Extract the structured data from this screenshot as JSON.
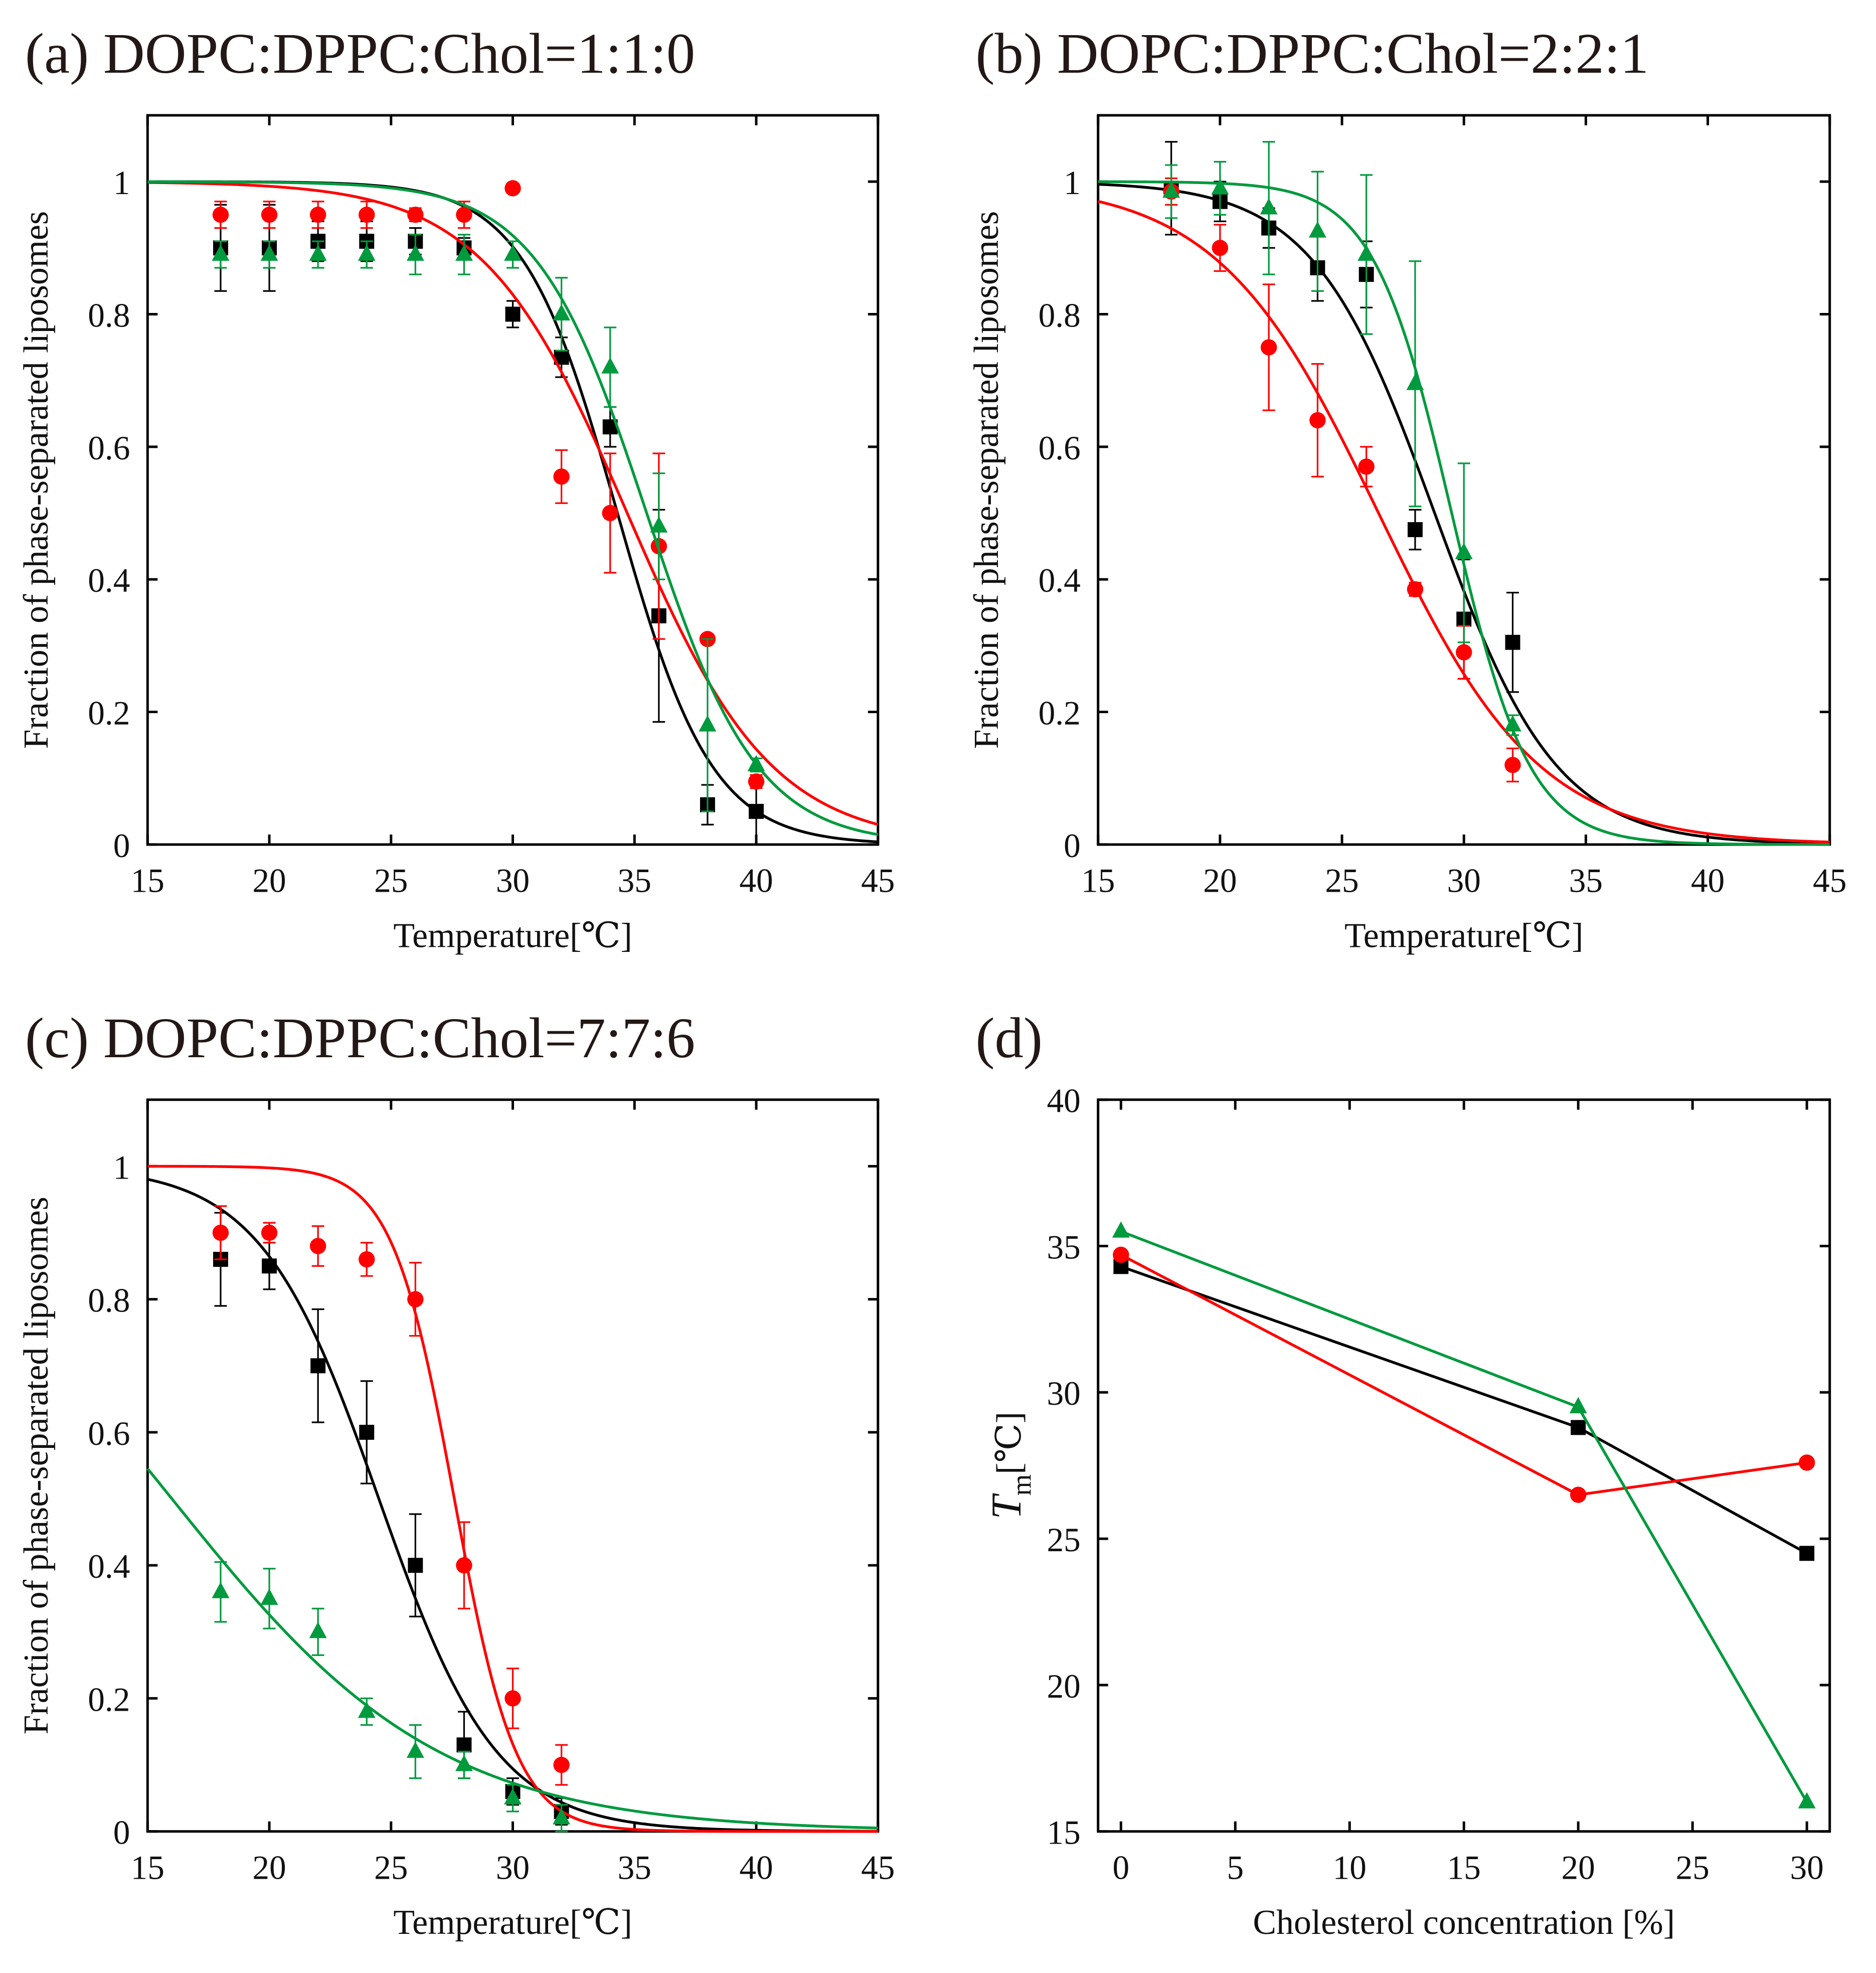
{
  "colors": {
    "black": "#000000",
    "red": "#ff0000",
    "green": "#009a3e"
  },
  "chart_data": [
    {
      "type": "scatter",
      "title": "(a)  DOPC:DPPC:Chol=1:1:0",
      "xlabel": "Temperature[℃]",
      "ylabel": "Fraction of phase-separated liposomes",
      "xlim": [
        15,
        45
      ],
      "ylim": [
        0,
        1.1
      ],
      "xticks": [
        "15",
        "20",
        "25",
        "30",
        "35",
        "40",
        "45"
      ],
      "yticks": [
        "0",
        "0.2",
        "0.4",
        "0.6",
        "0.8",
        "1"
      ],
      "series": [
        {
          "color": "black",
          "marker": "square",
          "fit": {
            "Tm": 34.3,
            "w": 1.94
          },
          "x": [
            18,
            20,
            22,
            24,
            26,
            28,
            30,
            32,
            34,
            36,
            38,
            40
          ],
          "y": [
            0.9,
            0.9,
            0.91,
            0.91,
            0.91,
            0.9,
            0.8,
            0.735,
            0.63,
            0.345,
            0.06,
            0.05
          ],
          "err": [
            0.065,
            0.065,
            0.03,
            0.03,
            0.02,
            0.015,
            0.02,
            0.03,
            0.03,
            0.16,
            0.03,
            0.05
          ]
        },
        {
          "color": "red",
          "marker": "circle",
          "fit": {
            "Tm": 34.7,
            "w": 2.97
          },
          "x": [
            18,
            20,
            22,
            24,
            26,
            28,
            30,
            32,
            34,
            36,
            38,
            40
          ],
          "y": [
            0.95,
            0.95,
            0.95,
            0.95,
            0.95,
            0.95,
            0.99,
            0.555,
            0.5,
            0.45,
            0.31,
            0.095
          ],
          "err": [
            0.02,
            0.02,
            0.02,
            0.02,
            0.01,
            0.02,
            0,
            0.04,
            0.09,
            0.14,
            0,
            0.01
          ]
        },
        {
          "color": "green",
          "marker": "triangle",
          "fit": {
            "Tm": 35.5,
            "w": 2.27
          },
          "x": [
            18,
            20,
            22,
            24,
            26,
            28,
            30,
            32,
            34,
            36,
            38,
            40
          ],
          "y": [
            0.89,
            0.89,
            0.89,
            0.89,
            0.89,
            0.89,
            0.89,
            0.8,
            0.72,
            0.48,
            0.18,
            0.12
          ],
          "err": [
            0.02,
            0.02,
            0.02,
            0.02,
            0.03,
            0.03,
            0.02,
            0.055,
            0.06,
            0.08,
            0.13,
            0.01
          ]
        }
      ]
    },
    {
      "type": "scatter",
      "title": "(b)  DOPC:DPPC:Chol=2:2:1",
      "xlabel": "Temperature[℃]",
      "ylabel": "Fraction of phase-separated liposomes",
      "xlim": [
        15,
        45
      ],
      "ylim": [
        0,
        1.1
      ],
      "xticks": [
        "15",
        "20",
        "25",
        "30",
        "35",
        "40",
        "45"
      ],
      "yticks": [
        "0",
        "0.2",
        "0.4",
        "0.6",
        "0.8",
        "1"
      ],
      "series": [
        {
          "color": "black",
          "marker": "square",
          "fit": {
            "Tm": 28.8,
            "w": 2.5
          },
          "x": [
            18,
            20,
            22,
            24,
            26,
            28,
            30,
            32
          ],
          "y": [
            0.99,
            0.97,
            0.93,
            0.87,
            0.86,
            0.475,
            0.34,
            0.305
          ],
          "err": [
            0.07,
            0.03,
            0.03,
            0.05,
            0.05,
            0.03,
            0.09,
            0.075
          ]
        },
        {
          "color": "red",
          "marker": "circle",
          "fit": {
            "Tm": 26.5,
            "w": 3.3
          },
          "x": [
            18,
            20,
            22,
            24,
            26,
            28,
            30,
            32
          ],
          "y": [
            0.985,
            0.9,
            0.75,
            0.64,
            0.57,
            0.385,
            0.29,
            0.12
          ],
          "err": [
            0.02,
            0.035,
            0.095,
            0.085,
            0.03,
            0.01,
            0.04,
            0.025
          ]
        },
        {
          "color": "green",
          "marker": "triangle",
          "fit": {
            "Tm": 29.5,
            "w": 1.6
          },
          "x": [
            18,
            20,
            22,
            24,
            26,
            28,
            30,
            32
          ],
          "y": [
            0.985,
            0.99,
            0.96,
            0.925,
            0.89,
            0.695,
            0.44,
            0.18
          ],
          "err": [
            0.04,
            0.04,
            0.1,
            0.09,
            0.12,
            0.185,
            0.135,
            0.015
          ]
        }
      ]
    },
    {
      "type": "scatter",
      "title": "(c)  DOPC:DPPC:Chol=7:7:6",
      "xlabel": "Temperature[℃]",
      "ylabel": "Fraction of phase-separated liposomes",
      "xlim": [
        15,
        45
      ],
      "ylim": [
        0,
        1.1
      ],
      "xticks": [
        "15",
        "20",
        "25",
        "30",
        "35",
        "40",
        "45"
      ],
      "yticks": [
        "0",
        "0.2",
        "0.4",
        "0.6",
        "0.8",
        "1"
      ],
      "series": [
        {
          "color": "black",
          "marker": "square",
          "fit": {
            "Tm": 24.5,
            "w": 2.43
          },
          "x": [
            18,
            20,
            22,
            24,
            26,
            28,
            30,
            32
          ],
          "y": [
            0.86,
            0.85,
            0.7,
            0.6,
            0.4,
            0.13,
            0.06,
            0.03
          ],
          "err": [
            0.07,
            0.035,
            0.085,
            0.077,
            0.077,
            0.05,
            0.02,
            0.02
          ]
        },
        {
          "color": "red",
          "marker": "circle",
          "fit": {
            "Tm": 27.6,
            "w": 1.27
          },
          "x": [
            18,
            20,
            22,
            24,
            26,
            28,
            30,
            32
          ],
          "y": [
            0.9,
            0.9,
            0.88,
            0.86,
            0.8,
            0.4,
            0.2,
            0.1
          ],
          "err": [
            0.04,
            0.015,
            0.03,
            0.025,
            0.055,
            0.065,
            0.045,
            0.03
          ]
        },
        {
          "color": "green",
          "marker": "triangle",
          "fit": {
            "Tm": 16.0,
            "w": 5.5
          },
          "x": [
            18,
            20,
            22,
            24,
            26,
            28,
            30,
            32
          ],
          "y": [
            0.36,
            0.35,
            0.3,
            0.18,
            0.12,
            0.1,
            0.05,
            0.02
          ],
          "err": [
            0.045,
            0.045,
            0.035,
            0.02,
            0.04,
            0.02,
            0.02,
            0.02
          ]
        }
      ]
    },
    {
      "type": "line",
      "title": "(d)",
      "xlabel": "Cholesterol concentration [%]",
      "ylabel": "T",
      "ylabel_sub": "m",
      "ylabel_unit": "[℃]",
      "xlim": [
        -1,
        31
      ],
      "ylim": [
        15,
        40
      ],
      "xticks": [
        "0",
        "5",
        "10",
        "15",
        "20",
        "25",
        "30"
      ],
      "yticks": [
        "15",
        "20",
        "25",
        "30",
        "35",
        "40"
      ],
      "series": [
        {
          "color": "black",
          "marker": "square",
          "x": [
            0,
            20,
            30
          ],
          "y": [
            34.3,
            28.8,
            24.5
          ]
        },
        {
          "color": "red",
          "marker": "circle",
          "x": [
            0,
            20,
            30
          ],
          "y": [
            34.7,
            26.5,
            27.6
          ]
        },
        {
          "color": "green",
          "marker": "triangle",
          "x": [
            0,
            20,
            30
          ],
          "y": [
            35.5,
            29.5,
            16.0
          ]
        }
      ]
    }
  ]
}
